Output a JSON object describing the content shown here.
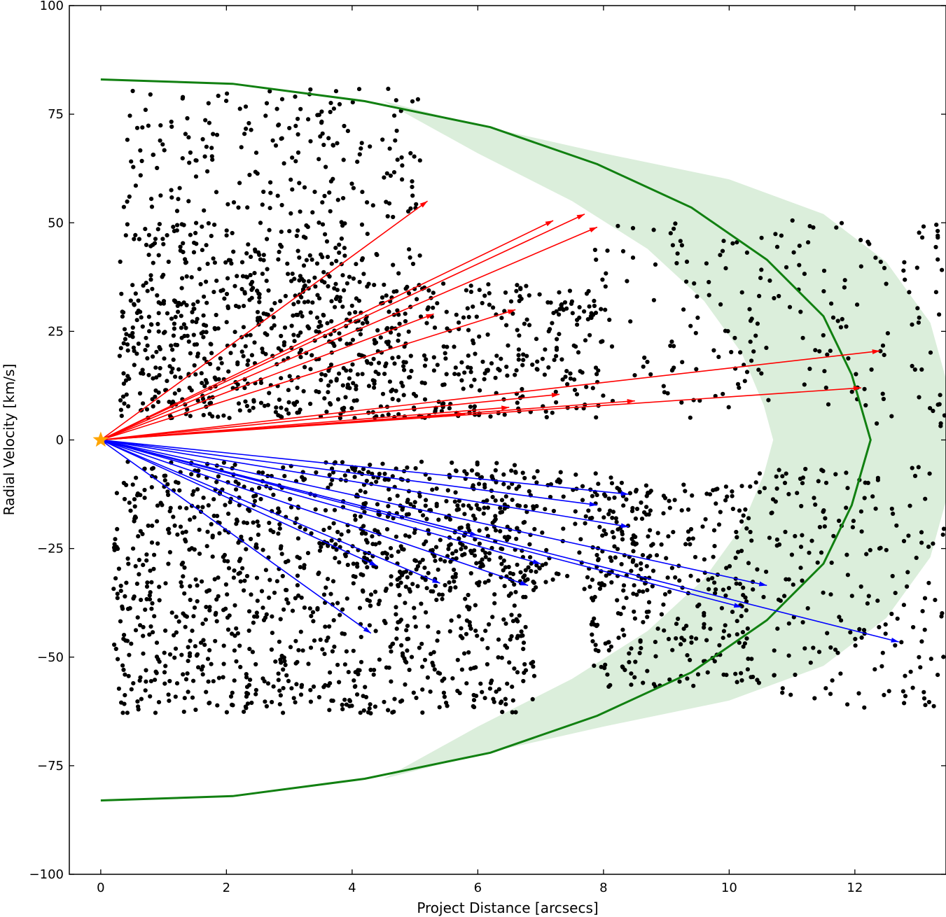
{
  "chart_data": {
    "type": "scatter",
    "title": "",
    "xlabel": "Project Distance [arcsecs]",
    "ylabel": "Radial Velocity [km/s]",
    "xlim": [
      -0.5,
      13.45
    ],
    "ylim": [
      -100,
      100
    ],
    "x_ticks": [
      0,
      2,
      4,
      6,
      8,
      10,
      12
    ],
    "y_ticks": [
      -100,
      -75,
      -50,
      -25,
      0,
      25,
      50,
      75,
      100
    ],
    "grid": false,
    "tick_direction": "in",
    "colors": {
      "points": "#000000",
      "model_curve": "#118011",
      "model_band": "#dbeedb",
      "redshifted_vectors": "#ff0000",
      "blueshifted_vectors": "#0000ff",
      "source_star": "#ffa500"
    },
    "source_marker": {
      "x": 0,
      "y": 0,
      "shape": "star"
    },
    "model_curve": {
      "x": [
        0,
        2.1,
        4.2,
        6.2,
        7.9,
        9.4,
        10.6,
        11.5,
        11.95,
        12.25,
        11.95,
        11.5,
        10.6,
        9.4,
        7.9,
        6.2,
        4.2,
        2.1,
        0
      ],
      "y": [
        83,
        82,
        78,
        72,
        63.5,
        53.5,
        41.5,
        28.5,
        15,
        0,
        -15,
        -28.5,
        -41.5,
        -53.5,
        -63.5,
        -72,
        -78,
        -82,
        -83
      ]
    },
    "model_band": {
      "outer": {
        "x": [
          4.5,
          6,
          8,
          10,
          11.5,
          12.5,
          13.2,
          13.45,
          13.45,
          13.2,
          12.5,
          11.5,
          10,
          8,
          6,
          4.5
        ],
        "y": [
          78,
          72.5,
          66,
          60,
          52,
          41,
          27,
          14,
          -14,
          -27,
          -41,
          -52,
          -60,
          -66,
          -72.5,
          -78
        ]
      },
      "inner": {
        "x": [
          4.5,
          6,
          7.5,
          8.7,
          9.6,
          10.2,
          10.55,
          10.7,
          10.55,
          10.2,
          9.6,
          8.7,
          7.5,
          6,
          4.5
        ],
        "y": [
          78,
          66,
          55,
          44,
          32,
          20,
          8,
          0,
          -8,
          -20,
          -32,
          -44,
          -55,
          -66,
          -78
        ]
      }
    },
    "series": [
      {
        "name": "",
        "kind": "arrows",
        "color": "#ff0000",
        "origin": [
          0,
          0
        ],
        "tips": [
          [
            5.2,
            55
          ],
          [
            7.2,
            50.5
          ],
          [
            7.7,
            52
          ],
          [
            7.9,
            49
          ],
          [
            6.6,
            30
          ],
          [
            5.3,
            29
          ],
          [
            12.4,
            20.5
          ],
          [
            12.1,
            12
          ],
          [
            7.3,
            10.5
          ],
          [
            8.5,
            9
          ],
          [
            6.5,
            7.5
          ],
          [
            5.8,
            6
          ]
        ]
      },
      {
        "name": "",
        "kind": "arrows",
        "color": "#0000ff",
        "origin": [
          0,
          0
        ],
        "tips": [
          [
            8.4,
            -12.5
          ],
          [
            7.9,
            -15
          ],
          [
            8.4,
            -20
          ],
          [
            10.6,
            -33.5
          ],
          [
            12.7,
            -46.5
          ],
          [
            7.0,
            -28.5
          ],
          [
            6.8,
            -33.5
          ],
          [
            5.4,
            -33
          ],
          [
            4.4,
            -29
          ],
          [
            4.3,
            -44.5
          ],
          [
            10.2,
            -38.5
          ],
          [
            6.0,
            -22
          ]
        ]
      },
      {
        "name": "",
        "kind": "clusters",
        "color": "#000000",
        "note_regions": [
          {
            "x": [
              0.3,
              5.1
            ],
            "y": [
              5,
              81
            ],
            "n": 480
          },
          {
            "x": [
              0.3,
              8.0
            ],
            "y": [
              5,
              36
            ],
            "n": 620
          },
          {
            "x": [
              0.5,
              4.0
            ],
            "y": [
              36,
              50
            ],
            "n": 80
          },
          {
            "x": [
              7.8,
              10.4
            ],
            "y": [
              5,
              50
            ],
            "n": 90
          },
          {
            "x": [
              10.4,
              13.45
            ],
            "y": [
              3,
              51
            ],
            "n": 110
          },
          {
            "x": [
              0.2,
              6.9
            ],
            "y": [
              -63,
              -5
            ],
            "n": 1100
          },
          {
            "x": [
              4.0,
              8.8
            ],
            "y": [
              -35,
              -7
            ],
            "n": 260
          },
          {
            "x": [
              7.8,
              10.4
            ],
            "y": [
              -57,
              -10
            ],
            "n": 300
          },
          {
            "x": [
              10.4,
              13.45
            ],
            "y": [
              -62,
              -6
            ],
            "n": 190
          }
        ]
      }
    ]
  }
}
